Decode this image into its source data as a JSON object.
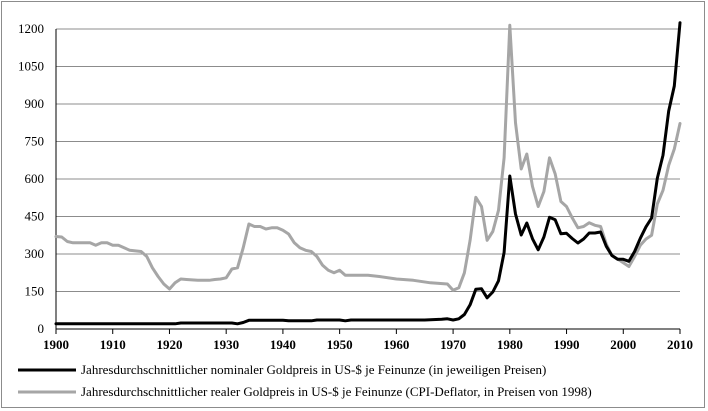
{
  "chart_data": {
    "type": "line",
    "title": "",
    "xlabel": "",
    "ylabel": "",
    "xlim": [
      1900,
      2010
    ],
    "ylim": [
      0,
      1200
    ],
    "x_ticks": [
      "1900",
      "1910",
      "1920",
      "1930",
      "1940",
      "1950",
      "1960",
      "1970",
      "1980",
      "1990",
      "2000",
      "2010"
    ],
    "y_ticks": [
      "0",
      "150",
      "300",
      "450",
      "600",
      "750",
      "900",
      "1050",
      "1200"
    ],
    "grid": "horizontal",
    "legend_position": "bottom",
    "series": [
      {
        "name": "Jahresdurchschnittlicher nominaler Goldpreis in US-$ je Feinunze (in jeweiligen Preisen)",
        "color": "#000000",
        "points": [
          [
            1900,
            21
          ],
          [
            1905,
            21
          ],
          [
            1910,
            21
          ],
          [
            1915,
            21
          ],
          [
            1920,
            21
          ],
          [
            1921,
            21
          ],
          [
            1922,
            24
          ],
          [
            1925,
            24
          ],
          [
            1930,
            24
          ],
          [
            1931,
            24
          ],
          [
            1932,
            21
          ],
          [
            1933,
            26
          ],
          [
            1934,
            35
          ],
          [
            1935,
            35
          ],
          [
            1940,
            35
          ],
          [
            1941,
            33
          ],
          [
            1945,
            33
          ],
          [
            1946,
            36
          ],
          [
            1950,
            36
          ],
          [
            1951,
            33
          ],
          [
            1952,
            36
          ],
          [
            1955,
            36
          ],
          [
            1960,
            36
          ],
          [
            1965,
            36
          ],
          [
            1968,
            39
          ],
          [
            1969,
            41
          ],
          [
            1970,
            36
          ],
          [
            1971,
            41
          ],
          [
            1972,
            58
          ],
          [
            1973,
            97
          ],
          [
            1974,
            159
          ],
          [
            1975,
            161
          ],
          [
            1976,
            125
          ],
          [
            1977,
            148
          ],
          [
            1978,
            193
          ],
          [
            1979,
            306
          ],
          [
            1980,
            612
          ],
          [
            1981,
            460
          ],
          [
            1982,
            376
          ],
          [
            1983,
            424
          ],
          [
            1984,
            361
          ],
          [
            1985,
            317
          ],
          [
            1986,
            368
          ],
          [
            1987,
            447
          ],
          [
            1988,
            437
          ],
          [
            1989,
            381
          ],
          [
            1990,
            383
          ],
          [
            1991,
            362
          ],
          [
            1992,
            344
          ],
          [
            1993,
            360
          ],
          [
            1994,
            384
          ],
          [
            1995,
            384
          ],
          [
            1996,
            388
          ],
          [
            1997,
            331
          ],
          [
            1998,
            294
          ],
          [
            1999,
            279
          ],
          [
            2000,
            279
          ],
          [
            2001,
            271
          ],
          [
            2002,
            310
          ],
          [
            2003,
            363
          ],
          [
            2004,
            409
          ],
          [
            2005,
            444
          ],
          [
            2006,
            603
          ],
          [
            2007,
            695
          ],
          [
            2008,
            872
          ],
          [
            2009,
            972
          ],
          [
            2010,
            1225
          ]
        ]
      },
      {
        "name": "Jahresdurchschnittlicher realer Goldpreis in US-$ je Feinunze (CPI-Deflator, in Preisen von 1998)",
        "color": "#a6a6a6",
        "points": [
          [
            1900,
            370
          ],
          [
            1901,
            368
          ],
          [
            1902,
            350
          ],
          [
            1903,
            345
          ],
          [
            1905,
            345
          ],
          [
            1906,
            345
          ],
          [
            1907,
            335
          ],
          [
            1908,
            345
          ],
          [
            1909,
            345
          ],
          [
            1910,
            335
          ],
          [
            1911,
            335
          ],
          [
            1912,
            325
          ],
          [
            1913,
            315
          ],
          [
            1915,
            310
          ],
          [
            1916,
            290
          ],
          [
            1917,
            245
          ],
          [
            1918,
            210
          ],
          [
            1919,
            180
          ],
          [
            1920,
            160
          ],
          [
            1921,
            185
          ],
          [
            1922,
            200
          ],
          [
            1923,
            198
          ],
          [
            1925,
            195
          ],
          [
            1926,
            195
          ],
          [
            1927,
            195
          ],
          [
            1928,
            198
          ],
          [
            1929,
            200
          ],
          [
            1930,
            205
          ],
          [
            1931,
            240
          ],
          [
            1932,
            245
          ],
          [
            1933,
            325
          ],
          [
            1934,
            420
          ],
          [
            1935,
            410
          ],
          [
            1936,
            410
          ],
          [
            1937,
            400
          ],
          [
            1938,
            405
          ],
          [
            1939,
            405
          ],
          [
            1940,
            395
          ],
          [
            1941,
            380
          ],
          [
            1942,
            345
          ],
          [
            1943,
            325
          ],
          [
            1944,
            315
          ],
          [
            1945,
            310
          ],
          [
            1946,
            290
          ],
          [
            1947,
            255
          ],
          [
            1948,
            235
          ],
          [
            1949,
            225
          ],
          [
            1950,
            235
          ],
          [
            1951,
            215
          ],
          [
            1955,
            215
          ],
          [
            1957,
            210
          ],
          [
            1960,
            200
          ],
          [
            1963,
            195
          ],
          [
            1966,
            185
          ],
          [
            1969,
            180
          ],
          [
            1970,
            155
          ],
          [
            1971,
            165
          ],
          [
            1972,
            225
          ],
          [
            1973,
            355
          ],
          [
            1974,
            527
          ],
          [
            1975,
            490
          ],
          [
            1976,
            355
          ],
          [
            1977,
            390
          ],
          [
            1978,
            475
          ],
          [
            1979,
            685
          ],
          [
            1980,
            1215
          ],
          [
            1981,
            825
          ],
          [
            1982,
            640
          ],
          [
            1983,
            700
          ],
          [
            1984,
            570
          ],
          [
            1985,
            490
          ],
          [
            1986,
            550
          ],
          [
            1987,
            685
          ],
          [
            1988,
            620
          ],
          [
            1989,
            510
          ],
          [
            1990,
            490
          ],
          [
            1991,
            445
          ],
          [
            1992,
            405
          ],
          [
            1993,
            410
          ],
          [
            1994,
            425
          ],
          [
            1995,
            415
          ],
          [
            1996,
            410
          ],
          [
            1997,
            340
          ],
          [
            1998,
            294
          ],
          [
            1999,
            280
          ],
          [
            2000,
            265
          ],
          [
            2001,
            250
          ],
          [
            2002,
            290
          ],
          [
            2003,
            335
          ],
          [
            2004,
            360
          ],
          [
            2005,
            375
          ],
          [
            2006,
            500
          ],
          [
            2007,
            555
          ],
          [
            2008,
            655
          ],
          [
            2009,
            720
          ],
          [
            2010,
            822
          ]
        ]
      }
    ]
  }
}
